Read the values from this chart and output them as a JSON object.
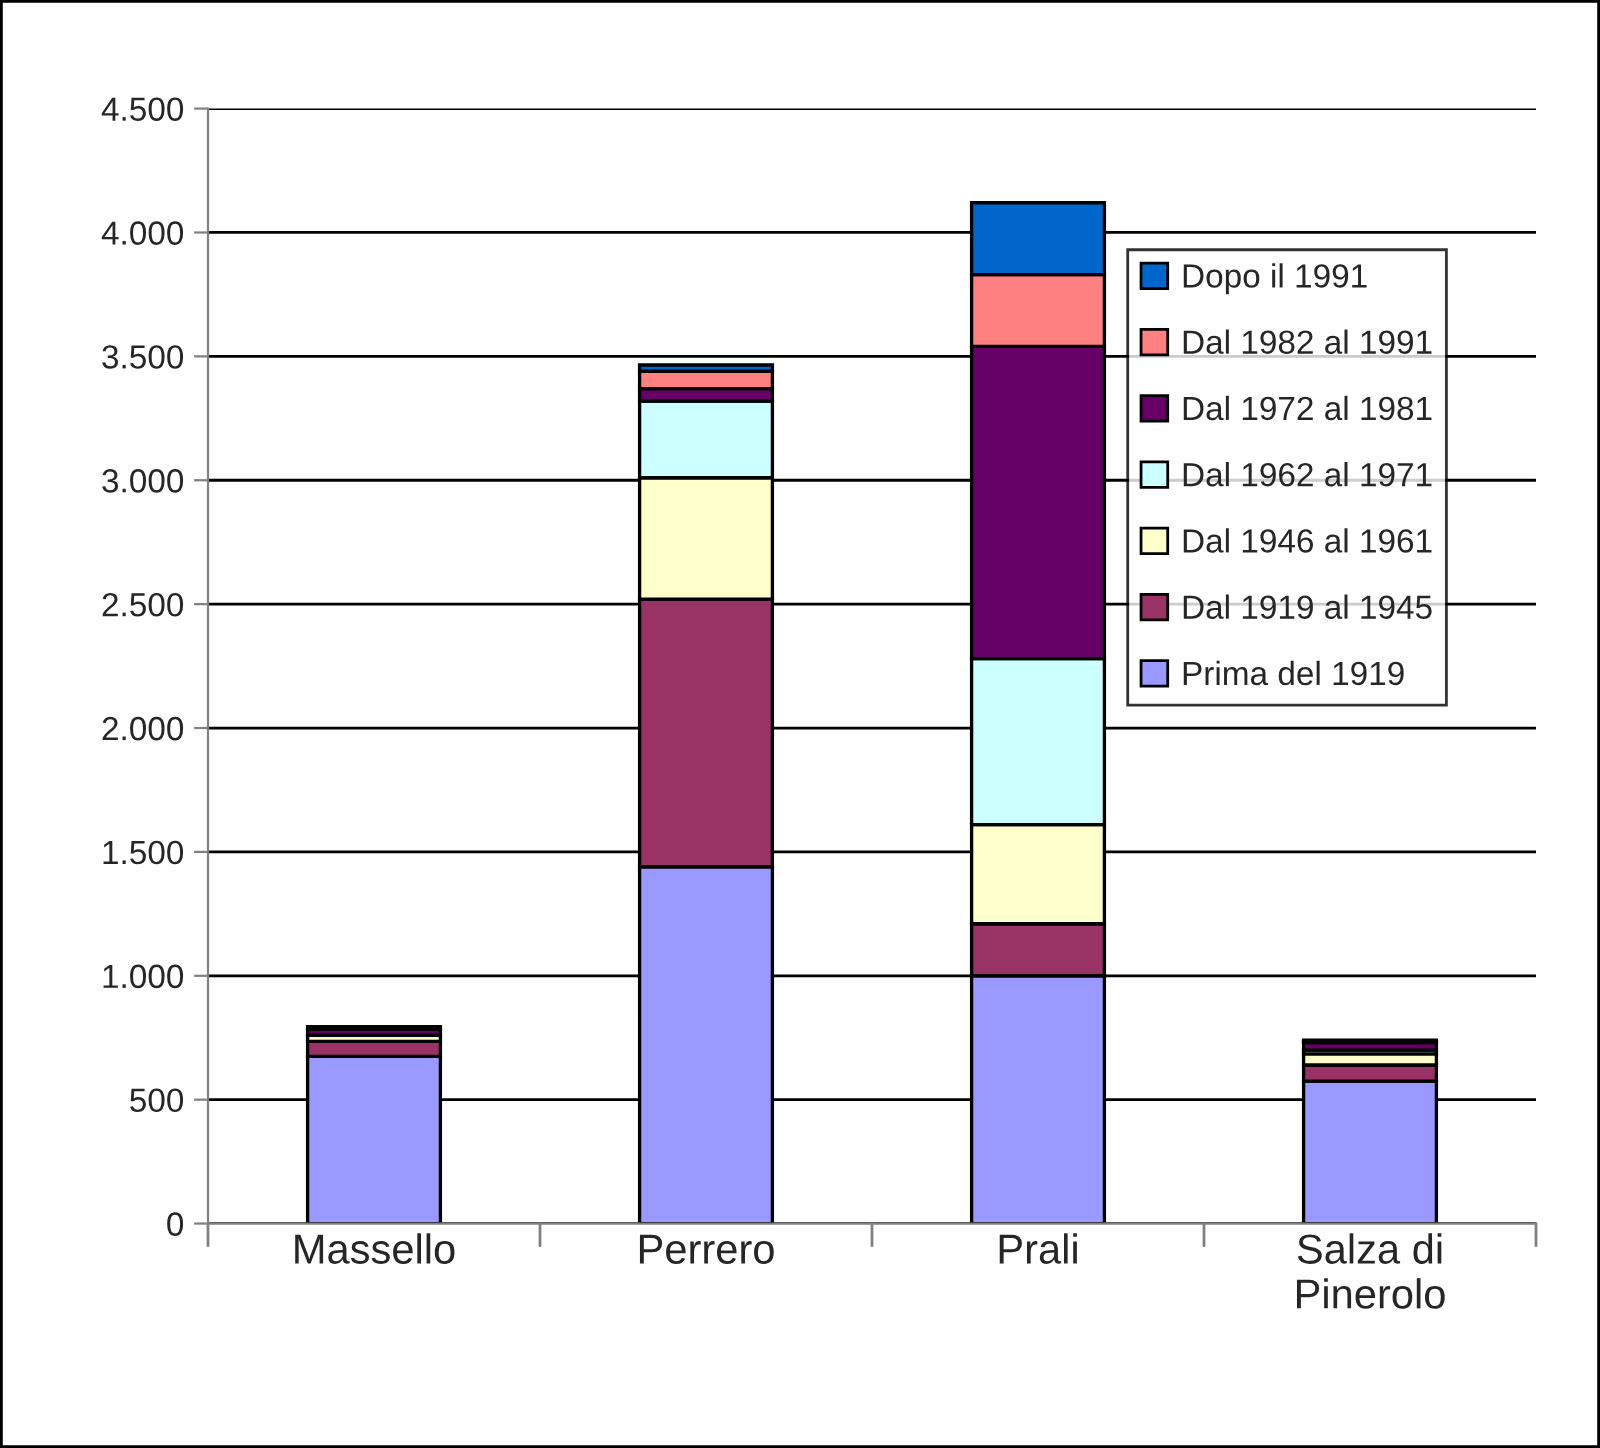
{
  "chart_data": {
    "type": "bar",
    "stacked": true,
    "categories": [
      "Massello",
      "Perrero",
      "Prali",
      "Salza di\nPinerolo"
    ],
    "series": [
      {
        "name": "Prima del 1919",
        "color": "#9999ff",
        "values": [
          675,
          1440,
          1000,
          575
        ]
      },
      {
        "name": "Dal 1919 al 1945",
        "color": "#993366",
        "values": [
          60,
          1080,
          210,
          65
        ]
      },
      {
        "name": "Dal 1946 al 1961",
        "color": "#ffffcc",
        "values": [
          25,
          490,
          400,
          45
        ]
      },
      {
        "name": "Dal 1962 al 1971",
        "color": "#ccffff",
        "values": [
          null,
          310,
          670,
          15
        ]
      },
      {
        "name": "Dal 1972 al 1981",
        "color": "#660066",
        "values": [
          25,
          50,
          1260,
          30
        ]
      },
      {
        "name": "Dal 1982 al 1991",
        "color": "#ff8080",
        "values": [
          null,
          70,
          290,
          5
        ]
      },
      {
        "name": "Dopo il 1991",
        "color": "#0066cc",
        "values": [
          10,
          25,
          290,
          5
        ]
      }
    ],
    "ylim": [
      0,
      4500
    ],
    "yticks": [
      {
        "value": 0,
        "label": "0"
      },
      {
        "value": 500,
        "label": "500"
      },
      {
        "value": 1000,
        "label": "1.000"
      },
      {
        "value": 1500,
        "label": "1.500"
      },
      {
        "value": 2000,
        "label": "2.000"
      },
      {
        "value": 2500,
        "label": "2.500"
      },
      {
        "value": 3000,
        "label": "3.000"
      },
      {
        "value": 3500,
        "label": "3.500"
      },
      {
        "value": 4000,
        "label": "4.000"
      },
      {
        "value": 4500,
        "label": "4.500"
      }
    ],
    "grid": "y",
    "legend": "right"
  }
}
